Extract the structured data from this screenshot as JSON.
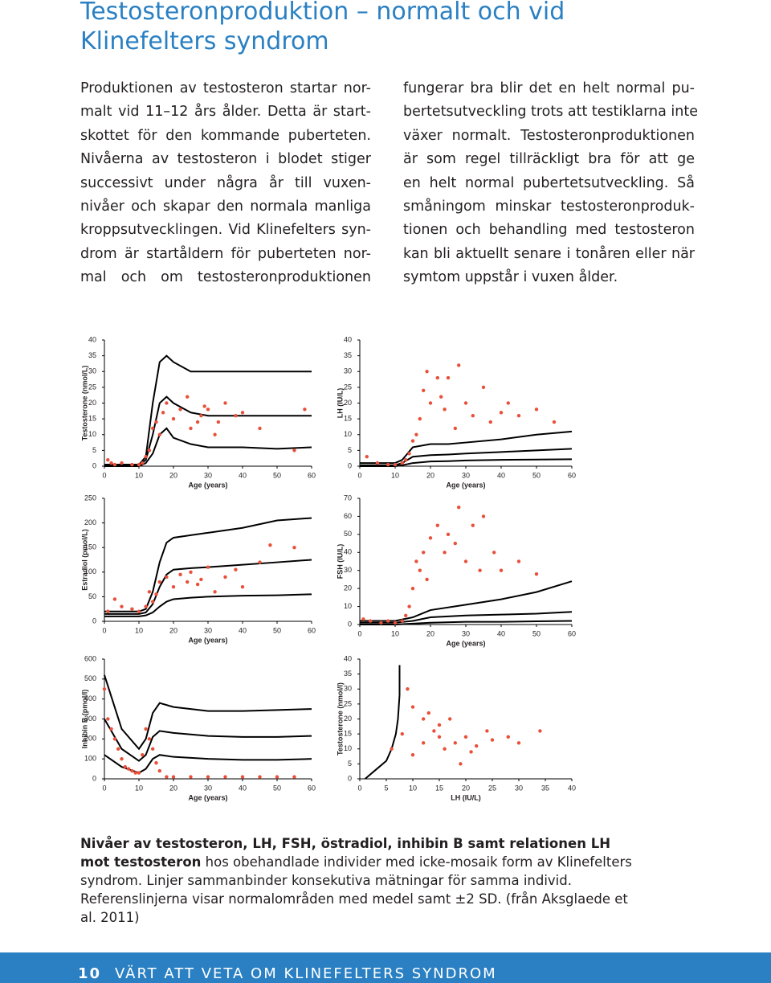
{
  "header": {
    "title": [
      "Testosteronproduktion – normalt och vid",
      "Klinefelters syndrom"
    ]
  },
  "body": {
    "left": [
      "Produktionen av testosteron startar nor-",
      "malt vid 11–12 års ålder. Detta är start-",
      "skottet för den kommande puberteten.",
      "Nivåerna av testosteron i blodet stiger",
      "successivt under några år till vuxen-",
      "nivåer och skapar den normala manliga",
      "kroppsutvecklingen. Vid Klinefelters syn-",
      "drom är startåldern för puberteten nor-",
      "mal och om testosteronproduktionen"
    ],
    "right": [
      "fungerar bra blir det en helt normal pu-",
      "bertetsutveckling trots att testiklarna inte",
      "växer normalt. Testosteronproduktionen",
      "är som regel tillräckligt bra för att ge",
      "en helt  normal pubertetsutveckling. Så",
      "småningom minskar testosteronproduk-",
      "tionen och behandling med testosteron",
      "kan bli aktuellt senare i tonåren eller när",
      "symtom uppstår i vuxen ålder."
    ]
  },
  "caption": {
    "bold": "Nivåer av testosteron, LH, FSH, östradiol, inhibin B samt relationen LH mot testosteron",
    "text": "hos obehandlade individer med icke-mosaik form av Klinefelters syndrom. Linjer sammanbinder konsekutiva mätningar för samma individ. Referenslinjerna visar normalområden med medel samt ±2 SD. (från Aksglaede et al. 2011)"
  },
  "footer": {
    "page": "10",
    "text": "VÄRT ATT VETA OM KLINEFELTERS SYNDROM"
  },
  "chart_data": [
    {
      "type": "line",
      "x_label": "Age (years)",
      "y_label": "Testosterone (nmol/L)",
      "xlim": [
        0,
        60
      ],
      "xticks": [
        0,
        10,
        20,
        30,
        40,
        50,
        60
      ],
      "ylim": [
        0,
        40
      ],
      "yticks": [
        0,
        5,
        10,
        15,
        20,
        25,
        30,
        35,
        40
      ],
      "series": [
        {
          "type": "line",
          "color": "#000000",
          "x": [
            0,
            5,
            10,
            12,
            14,
            16,
            18,
            20,
            25,
            30,
            40,
            50,
            60
          ],
          "values": [
            0.5,
            0.5,
            0.5,
            3,
            20,
            33,
            35,
            33,
            30,
            30,
            30,
            30,
            30
          ]
        },
        {
          "type": "line",
          "color": "#000000",
          "x": [
            0,
            5,
            10,
            12,
            14,
            16,
            18,
            20,
            25,
            30,
            40,
            50,
            60
          ],
          "values": [
            0.3,
            0.3,
            0.3,
            2,
            10,
            20,
            22,
            20,
            17,
            16,
            16,
            16,
            16
          ]
        },
        {
          "type": "line",
          "color": "#000000",
          "x": [
            0,
            5,
            10,
            12,
            14,
            16,
            18,
            20,
            25,
            30,
            40,
            50,
            60
          ],
          "values": [
            0,
            0,
            0,
            1,
            4,
            10,
            12,
            9,
            7,
            6,
            6,
            5.5,
            6
          ]
        },
        {
          "type": "scatter",
          "color": "#e8503a",
          "x": [
            1,
            2,
            3,
            5,
            8,
            10,
            11,
            12,
            13,
            14,
            15,
            16,
            17,
            18,
            20,
            22,
            24,
            25,
            27,
            28,
            29,
            30,
            32,
            33,
            35,
            38,
            40,
            45,
            55,
            58
          ],
          "values": [
            2,
            1,
            0.5,
            1,
            0.5,
            0.5,
            1,
            3,
            5,
            12,
            14,
            10,
            17,
            20,
            15,
            18,
            22,
            12,
            14,
            16,
            19,
            18,
            10,
            14,
            20,
            16,
            17,
            12,
            5,
            18
          ]
        }
      ]
    },
    {
      "type": "line",
      "x_label": "Age (years)",
      "y_label": "LH (IU/L)",
      "xlim": [
        0,
        60
      ],
      "xticks": [
        0,
        10,
        20,
        30,
        40,
        50,
        60
      ],
      "ylim": [
        0,
        40
      ],
      "yticks": [
        0,
        5,
        10,
        15,
        20,
        25,
        30,
        35,
        40
      ],
      "series": [
        {
          "type": "line",
          "color": "#000000",
          "x": [
            0,
            5,
            10,
            12,
            15,
            20,
            25,
            30,
            40,
            50,
            60
          ],
          "values": [
            1,
            1,
            1,
            2,
            6,
            7,
            7,
            7.5,
            8.5,
            10,
            11
          ]
        },
        {
          "type": "line",
          "color": "#000000",
          "x": [
            0,
            5,
            10,
            12,
            15,
            20,
            25,
            30,
            40,
            50,
            60
          ],
          "values": [
            0.3,
            0.3,
            0.3,
            1,
            3,
            3.5,
            3.7,
            4,
            4.5,
            5,
            5.5
          ]
        },
        {
          "type": "line",
          "color": "#000000",
          "x": [
            0,
            5,
            10,
            12,
            15,
            20,
            25,
            30,
            40,
            50,
            60
          ],
          "values": [
            0,
            0,
            0,
            0.3,
            1,
            1.5,
            1.6,
            1.8,
            2,
            2.1,
            2.2
          ]
        },
        {
          "type": "scatter",
          "color": "#e8503a",
          "x": [
            2,
            5,
            8,
            10,
            12,
            13,
            14,
            15,
            16,
            17,
            18,
            19,
            20,
            22,
            23,
            24,
            25,
            27,
            28,
            30,
            32,
            35,
            37,
            40,
            42,
            45,
            50,
            55
          ],
          "values": [
            3,
            1,
            0.5,
            0.5,
            1,
            2,
            4,
            8,
            10,
            15,
            24,
            30,
            20,
            28,
            22,
            18,
            28,
            12,
            32,
            20,
            16,
            25,
            14,
            17,
            20,
            16,
            18,
            14
          ]
        }
      ]
    },
    {
      "type": "line",
      "x_label": "Age (years)",
      "y_label": "Estradiol (pmol/L)",
      "xlim": [
        0,
        60
      ],
      "xticks": [
        0,
        10,
        20,
        30,
        40,
        50,
        60
      ],
      "ylim": [
        0,
        250
      ],
      "yticks": [
        0,
        50,
        100,
        150,
        200,
        250
      ],
      "series": [
        {
          "type": "line",
          "color": "#000000",
          "x": [
            0,
            10,
            12,
            14,
            16,
            18,
            20,
            25,
            30,
            40,
            50,
            60
          ],
          "values": [
            20,
            20,
            25,
            60,
            120,
            160,
            170,
            175,
            180,
            190,
            205,
            210
          ]
        },
        {
          "type": "line",
          "color": "#000000",
          "x": [
            0,
            10,
            12,
            14,
            16,
            18,
            20,
            25,
            30,
            40,
            50,
            60
          ],
          "values": [
            15,
            15,
            18,
            35,
            70,
            95,
            105,
            108,
            110,
            115,
            120,
            125
          ]
        },
        {
          "type": "line",
          "color": "#000000",
          "x": [
            0,
            10,
            12,
            14,
            16,
            18,
            20,
            25,
            30,
            40,
            50,
            60
          ],
          "values": [
            10,
            10,
            12,
            18,
            30,
            40,
            45,
            48,
            50,
            52,
            53,
            55
          ]
        },
        {
          "type": "scatter",
          "color": "#e8503a",
          "x": [
            1,
            3,
            5,
            8,
            10,
            12,
            13,
            14,
            15,
            16,
            18,
            20,
            22,
            24,
            25,
            27,
            28,
            30,
            32,
            35,
            38,
            40,
            45,
            48,
            55
          ],
          "values": [
            20,
            45,
            30,
            25,
            20,
            30,
            60,
            40,
            55,
            80,
            90,
            70,
            95,
            80,
            100,
            75,
            85,
            110,
            60,
            90,
            105,
            70,
            120,
            155,
            150
          ]
        }
      ]
    },
    {
      "type": "line",
      "x_label": "Age (years)",
      "y_label": "FSH (IU/L)",
      "xlim": [
        0,
        60
      ],
      "xticks": [
        0,
        10,
        20,
        30,
        40,
        50,
        60
      ],
      "ylim": [
        0,
        70
      ],
      "yticks": [
        0,
        10,
        20,
        30,
        40,
        50,
        60,
        70
      ],
      "series": [
        {
          "type": "line",
          "color": "#000000",
          "x": [
            0,
            10,
            15,
            20,
            30,
            40,
            50,
            60
          ],
          "values": [
            2,
            2,
            4,
            8,
            11,
            14,
            18,
            24
          ]
        },
        {
          "type": "line",
          "color": "#000000",
          "x": [
            0,
            10,
            15,
            20,
            30,
            40,
            50,
            60
          ],
          "values": [
            1,
            1,
            2,
            4,
            5,
            5.5,
            6,
            7
          ]
        },
        {
          "type": "line",
          "color": "#000000",
          "x": [
            0,
            10,
            15,
            20,
            30,
            40,
            50,
            60
          ],
          "values": [
            0,
            0,
            0.5,
            1,
            1.5,
            1.5,
            1.8,
            2
          ]
        },
        {
          "type": "scatter",
          "color": "#e8503a",
          "x": [
            1,
            3,
            6,
            8,
            10,
            12,
            13,
            14,
            15,
            16,
            17,
            18,
            19,
            20,
            22,
            24,
            25,
            27,
            28,
            30,
            32,
            34,
            35,
            38,
            40,
            45,
            50
          ],
          "values": [
            3,
            2,
            1,
            2,
            1,
            2,
            5,
            10,
            20,
            35,
            30,
            40,
            25,
            48,
            55,
            40,
            50,
            45,
            65,
            35,
            55,
            30,
            60,
            40,
            30,
            35,
            28
          ]
        }
      ]
    },
    {
      "type": "line",
      "x_label": "Age (years)",
      "y_label": "Inhibin B (pmol/l)",
      "xlim": [
        0,
        60
      ],
      "xticks": [
        0,
        10,
        20,
        30,
        40,
        50,
        60
      ],
      "ylim": [
        0,
        600
      ],
      "yticks": [
        0,
        100,
        200,
        300,
        400,
        500,
        600
      ],
      "series": [
        {
          "type": "line",
          "color": "#000000",
          "x": [
            0,
            5,
            10,
            12,
            14,
            16,
            20,
            30,
            40,
            50,
            60
          ],
          "values": [
            520,
            250,
            150,
            200,
            330,
            380,
            360,
            340,
            340,
            345,
            350
          ]
        },
        {
          "type": "line",
          "color": "#000000",
          "x": [
            0,
            5,
            10,
            12,
            14,
            16,
            20,
            30,
            40,
            50,
            60
          ],
          "values": [
            300,
            150,
            90,
            120,
            210,
            240,
            230,
            215,
            210,
            210,
            215
          ]
        },
        {
          "type": "line",
          "color": "#000000",
          "x": [
            0,
            5,
            10,
            12,
            14,
            16,
            20,
            30,
            40,
            50,
            60
          ],
          "values": [
            120,
            60,
            30,
            50,
            100,
            120,
            110,
            100,
            95,
            95,
            100
          ]
        },
        {
          "type": "scatter",
          "color": "#e8503a",
          "x": [
            0,
            1,
            2,
            3,
            4,
            5,
            6,
            7,
            8,
            9,
            10,
            11,
            12,
            13,
            14,
            15,
            16,
            18,
            20,
            25,
            30,
            35,
            40,
            45,
            50,
            55
          ],
          "values": [
            450,
            300,
            250,
            200,
            150,
            100,
            60,
            50,
            40,
            30,
            30,
            120,
            250,
            200,
            150,
            80,
            40,
            10,
            10,
            10,
            10,
            10,
            10,
            10,
            10,
            10
          ]
        }
      ]
    },
    {
      "type": "line",
      "x_label": "LH (IU/L)",
      "y_label": "Testosterone (nmol/l)",
      "xlim": [
        0,
        40
      ],
      "xticks": [
        0,
        5,
        10,
        15,
        20,
        25,
        30,
        35,
        40
      ],
      "ylim": [
        0,
        40
      ],
      "yticks": [
        0,
        5,
        10,
        15,
        20,
        25,
        30,
        35,
        40
      ],
      "series": [
        {
          "type": "line",
          "color": "#000000",
          "x": [
            1,
            3,
            5,
            6,
            6.8,
            7.2,
            7.5,
            7.5
          ],
          "values": [
            0,
            3,
            6,
            10,
            15,
            20,
            28,
            38
          ]
        },
        {
          "type": "scatter",
          "color": "#e8503a",
          "x": [
            6,
            8,
            10,
            12,
            14,
            15,
            16,
            18,
            20,
            22,
            24,
            25,
            28,
            30,
            34,
            10,
            13,
            17,
            19,
            21,
            12,
            9,
            15
          ],
          "values": [
            10,
            15,
            8,
            12,
            16,
            14,
            10,
            12,
            14,
            11,
            16,
            13,
            14,
            12,
            16,
            24,
            22,
            20,
            5,
            9,
            20,
            30,
            18
          ]
        }
      ]
    }
  ]
}
